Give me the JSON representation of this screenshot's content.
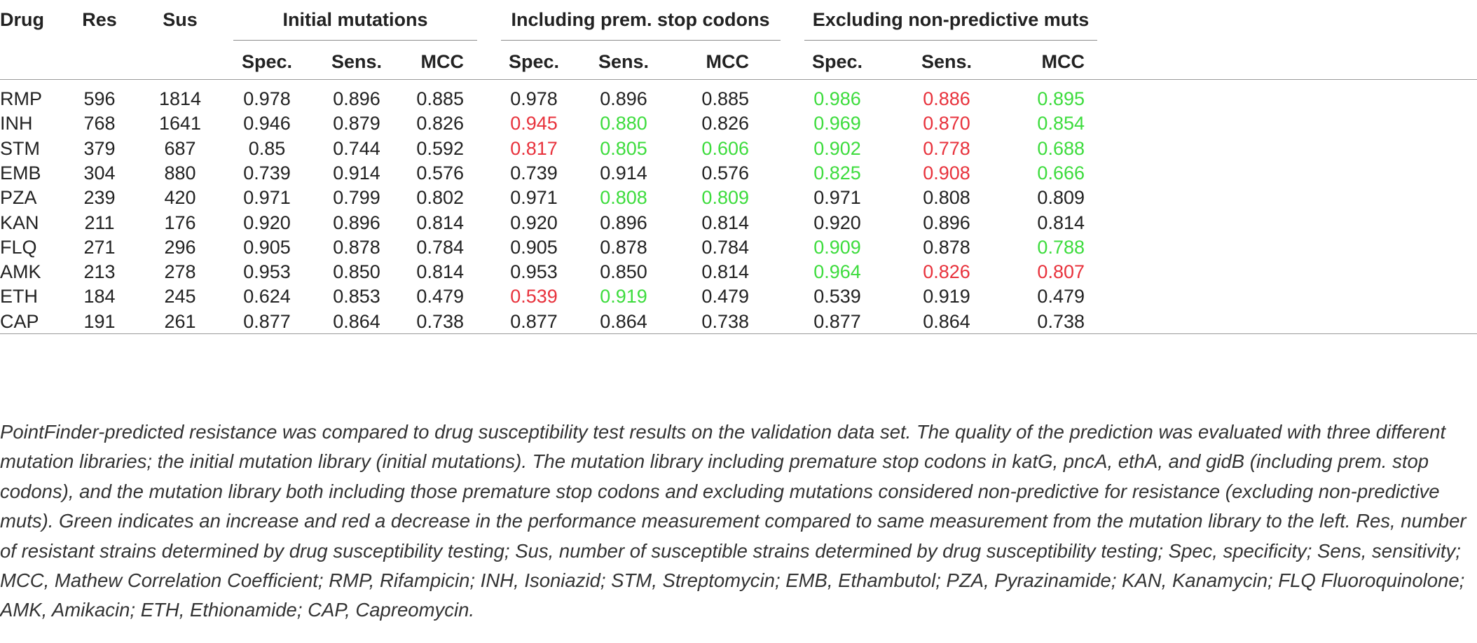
{
  "table": {
    "headers": {
      "drug": "Drug",
      "res": "Res",
      "sus": "Sus",
      "groups": [
        "Initial mutations",
        "Including prem. stop codons",
        "Excluding non-predictive muts"
      ],
      "metrics": [
        "Spec.",
        "Sens.",
        "MCC"
      ]
    },
    "colors": {
      "neutral": "#222222",
      "increase": "#3ddc3d",
      "decrease": "#e8323c"
    },
    "rows": [
      {
        "drug": "RMP",
        "res": "596",
        "sus": "1814",
        "cells": [
          [
            "0.978",
            "n"
          ],
          [
            "0.896",
            "n"
          ],
          [
            "0.885",
            "n"
          ],
          [
            "0.978",
            "n"
          ],
          [
            "0.896",
            "n"
          ],
          [
            "0.885",
            "n"
          ],
          [
            "0.986",
            "g"
          ],
          [
            "0.886",
            "r"
          ],
          [
            "0.895",
            "g"
          ]
        ]
      },
      {
        "drug": "INH",
        "res": "768",
        "sus": "1641",
        "cells": [
          [
            "0.946",
            "n"
          ],
          [
            "0.879",
            "n"
          ],
          [
            "0.826",
            "n"
          ],
          [
            "0.945",
            "r"
          ],
          [
            "0.880",
            "g"
          ],
          [
            "0.826",
            "n"
          ],
          [
            "0.969",
            "g"
          ],
          [
            "0.870",
            "r"
          ],
          [
            "0.854",
            "g"
          ]
        ]
      },
      {
        "drug": "STM",
        "res": "379",
        "sus": "687",
        "cells": [
          [
            "0.85",
            "n"
          ],
          [
            "0.744",
            "n"
          ],
          [
            "0.592",
            "n"
          ],
          [
            "0.817",
            "r"
          ],
          [
            "0.805",
            "g"
          ],
          [
            "0.606",
            "g"
          ],
          [
            "0.902",
            "g"
          ],
          [
            "0.778",
            "r"
          ],
          [
            "0.688",
            "g"
          ]
        ]
      },
      {
        "drug": "EMB",
        "res": "304",
        "sus": "880",
        "cells": [
          [
            "0.739",
            "n"
          ],
          [
            "0.914",
            "n"
          ],
          [
            "0.576",
            "n"
          ],
          [
            "0.739",
            "n"
          ],
          [
            "0.914",
            "n"
          ],
          [
            "0.576",
            "n"
          ],
          [
            "0.825",
            "g"
          ],
          [
            "0.908",
            "r"
          ],
          [
            "0.666",
            "g"
          ]
        ]
      },
      {
        "drug": "PZA",
        "res": "239",
        "sus": "420",
        "cells": [
          [
            "0.971",
            "n"
          ],
          [
            "0.799",
            "n"
          ],
          [
            "0.802",
            "n"
          ],
          [
            "0.971",
            "n"
          ],
          [
            "0.808",
            "g"
          ],
          [
            "0.809",
            "g"
          ],
          [
            "0.971",
            "n"
          ],
          [
            "0.808",
            "n"
          ],
          [
            "0.809",
            "n"
          ]
        ]
      },
      {
        "drug": "KAN",
        "res": "211",
        "sus": "176",
        "cells": [
          [
            "0.920",
            "n"
          ],
          [
            "0.896",
            "n"
          ],
          [
            "0.814",
            "n"
          ],
          [
            "0.920",
            "n"
          ],
          [
            "0.896",
            "n"
          ],
          [
            "0.814",
            "n"
          ],
          [
            "0.920",
            "n"
          ],
          [
            "0.896",
            "n"
          ],
          [
            "0.814",
            "n"
          ]
        ]
      },
      {
        "drug": "FLQ",
        "res": "271",
        "sus": "296",
        "cells": [
          [
            "0.905",
            "n"
          ],
          [
            "0.878",
            "n"
          ],
          [
            "0.784",
            "n"
          ],
          [
            "0.905",
            "n"
          ],
          [
            "0.878",
            "n"
          ],
          [
            "0.784",
            "n"
          ],
          [
            "0.909",
            "g"
          ],
          [
            "0.878",
            "n"
          ],
          [
            "0.788",
            "g"
          ]
        ]
      },
      {
        "drug": "AMK",
        "res": "213",
        "sus": "278",
        "cells": [
          [
            "0.953",
            "n"
          ],
          [
            "0.850",
            "n"
          ],
          [
            "0.814",
            "n"
          ],
          [
            "0.953",
            "n"
          ],
          [
            "0.850",
            "n"
          ],
          [
            "0.814",
            "n"
          ],
          [
            "0.964",
            "g"
          ],
          [
            "0.826",
            "r"
          ],
          [
            "0.807",
            "r"
          ]
        ]
      },
      {
        "drug": "ETH",
        "res": "184",
        "sus": "245",
        "cells": [
          [
            "0.624",
            "n"
          ],
          [
            "0.853",
            "n"
          ],
          [
            "0.479",
            "n"
          ],
          [
            "0.539",
            "r"
          ],
          [
            "0.919",
            "g"
          ],
          [
            "0.479",
            "n"
          ],
          [
            "0.539",
            "n"
          ],
          [
            "0.919",
            "n"
          ],
          [
            "0.479",
            "n"
          ]
        ]
      },
      {
        "drug": "CAP",
        "res": "191",
        "sus": "261",
        "cells": [
          [
            "0.877",
            "n"
          ],
          [
            "0.864",
            "n"
          ],
          [
            "0.738",
            "n"
          ],
          [
            "0.877",
            "n"
          ],
          [
            "0.864",
            "n"
          ],
          [
            "0.738",
            "n"
          ],
          [
            "0.877",
            "n"
          ],
          [
            "0.864",
            "n"
          ],
          [
            "0.738",
            "n"
          ]
        ]
      }
    ]
  },
  "caption": "PointFinder-predicted resistance was compared to drug susceptibility test results on the validation data set. The quality of the prediction was evaluated with three different mutation libraries; the initial mutation library (initial mutations). The mutation library including premature stop codons in katG, pncA, ethA, and gidB (including prem. stop codons), and the mutation library both including those premature stop codons and excluding mutations considered non-predictive for resistance (excluding non-predictive muts). Green indicates an increase and red a decrease in the performance measurement compared to same measurement from the mutation library to the left. Res, number of resistant strains determined by drug susceptibility testing; Sus, number of susceptible strains determined by drug susceptibility testing; Spec, specificity; Sens, sensitivity; MCC, Mathew Correlation Coefficient; RMP, Rifampicin; INH, Isoniazid; STM, Streptomycin; EMB, Ethambutol; PZA, Pyrazinamide; KAN, Kanamycin; FLQ Fluoroquinolone; AMK, Amikacin; ETH, Ethionamide; CAP, Capreomycin."
}
